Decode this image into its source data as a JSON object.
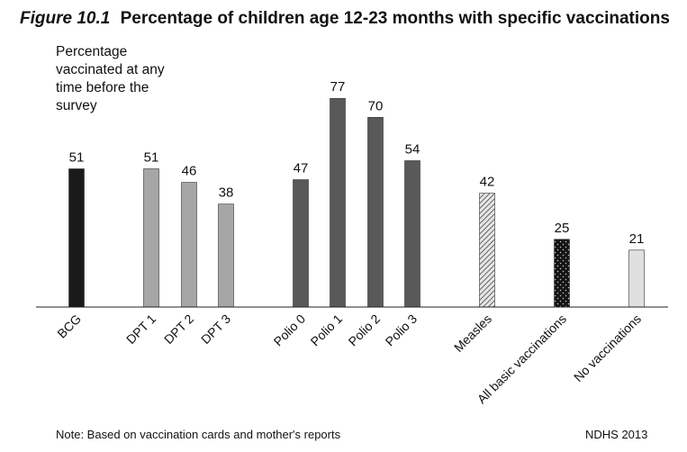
{
  "header": {
    "figure_label": "Figure 10.1",
    "title": "Percentage of children age 12-23 months with specific vaccinations"
  },
  "footer": {
    "note": "Note: Based on vaccination cards and mother's reports",
    "source": "NDHS 2013"
  },
  "colors": {
    "bcg": "#1a1a1a",
    "dpt": "#a6a6a7",
    "polio": "#595959",
    "measles": "#e6e6e6",
    "all_basic": "#151515",
    "none": "#dedfe0"
  },
  "chart_data": {
    "type": "bar",
    "title": "Percentage of children age 12-23 months with specific vaccinations",
    "ylabel": "Percentage vaccinated at any time before the survey",
    "xlabel": "",
    "ylim": [
      0,
      100
    ],
    "grid": false,
    "legend": "none",
    "categories": [
      "BCG",
      "DPT 1",
      "DPT 2",
      "DPT 3",
      "Polio 0",
      "Polio 1",
      "Polio 2",
      "Polio 3",
      "Measles",
      "All basic vaccinations",
      "No vaccinations"
    ],
    "values": [
      51,
      51,
      46,
      38,
      47,
      77,
      70,
      54,
      42,
      25,
      21
    ],
    "bar_styles": [
      "bcg",
      "dpt",
      "dpt",
      "dpt",
      "polio",
      "polio",
      "polio",
      "polio",
      "measles",
      "all_basic",
      "none"
    ],
    "bar_patterns": [
      "solid",
      "solid",
      "solid",
      "solid",
      "solid",
      "solid",
      "solid",
      "solid",
      "diagonal-hatch",
      "dots",
      "solid"
    ]
  }
}
